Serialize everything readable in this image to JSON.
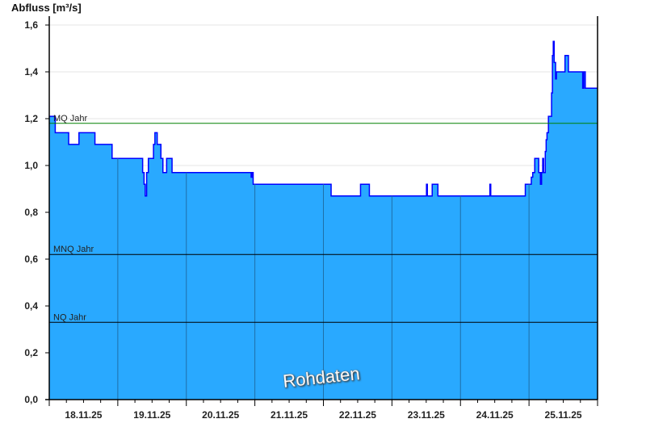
{
  "chart_data": {
    "type": "area",
    "title": "",
    "ylabel": "Abfluss [m³/s]",
    "xlabel": "",
    "ylim": [
      0,
      1.6
    ],
    "yticks": [
      "0,0",
      "0,2",
      "0,4",
      "0,6",
      "0,8",
      "1,0",
      "1,2",
      "1,4",
      "1,6"
    ],
    "xlim": [
      "18.11.25 00:00",
      "26.11.25 00:00"
    ],
    "xticks": [
      "18.11.25",
      "19.11.25",
      "20.11.25",
      "21.11.25",
      "22.11.25",
      "23.11.25",
      "24.11.25",
      "25.11.25"
    ],
    "grid": true,
    "step": true,
    "watermark": "Rohdaten",
    "colors": {
      "fill": "#29a9ff",
      "line": "#0000ff",
      "mq": "#008000",
      "ref": "#000000",
      "dayline": "#1f6fa8"
    },
    "reference_lines": [
      {
        "label": "MQ Jahr",
        "value": 1.18
      },
      {
        "label": "MNQ Jahr",
        "value": 0.62
      },
      {
        "label": "NQ Jahr",
        "value": 0.33
      }
    ],
    "points": [
      [
        "18.11.25 00:00",
        1.21
      ],
      [
        "18.11.25 02:06",
        1.14
      ],
      [
        "18.11.25 06:48",
        1.09
      ],
      [
        "18.11.25 10:24",
        1.14
      ],
      [
        "18.11.25 16:00",
        1.09
      ],
      [
        "18.11.25 22:00",
        1.03
      ],
      [
        "19.11.25 08:42",
        0.97
      ],
      [
        "19.11.25 09:12",
        0.92
      ],
      [
        "19.11.25 09:36",
        0.87
      ],
      [
        "19.11.25 10:06",
        0.97
      ],
      [
        "19.11.25 10:42",
        1.03
      ],
      [
        "19.11.25 12:30",
        1.09
      ],
      [
        "19.11.25 13:00",
        1.14
      ],
      [
        "19.11.25 13:48",
        1.09
      ],
      [
        "19.11.25 15:06",
        1.03
      ],
      [
        "19.11.25 15:48",
        0.97
      ],
      [
        "19.11.25 17:06",
        1.03
      ],
      [
        "19.11.25 19:00",
        0.97
      ],
      [
        "20.11.25 22:42",
        0.95
      ],
      [
        "20.11.25 23:00",
        0.97
      ],
      [
        "20.11.25 23:24",
        0.92
      ],
      [
        "22.11.25 02:42",
        0.87
      ],
      [
        "22.11.25 13:00",
        0.92
      ],
      [
        "22.11.25 16:06",
        0.87
      ],
      [
        "23.11.25 12:06",
        0.92
      ],
      [
        "23.11.25 12:24",
        0.87
      ],
      [
        "23.11.25 14:06",
        0.92
      ],
      [
        "23.11.25 16:06",
        0.87
      ],
      [
        "24.11.25 10:18",
        0.92
      ],
      [
        "24.11.25 10:36",
        0.87
      ],
      [
        "24.11.25 22:42",
        0.92
      ],
      [
        "25.11.25 00:48",
        0.95
      ],
      [
        "25.11.25 01:18",
        0.97
      ],
      [
        "25.11.25 02:00",
        1.03
      ],
      [
        "25.11.25 03:24",
        0.97
      ],
      [
        "25.11.25 04:00",
        0.92
      ],
      [
        "25.11.25 04:24",
        0.97
      ],
      [
        "25.11.25 04:48",
        1.03
      ],
      [
        "25.11.25 05:06",
        0.97
      ],
      [
        "25.11.25 05:42",
        1.06
      ],
      [
        "25.11.25 06:00",
        1.11
      ],
      [
        "25.11.25 06:18",
        1.14
      ],
      [
        "25.11.25 06:48",
        1.21
      ],
      [
        "25.11.25 07:54",
        1.31
      ],
      [
        "25.11.25 08:12",
        1.47
      ],
      [
        "25.11.25 08:30",
        1.53
      ],
      [
        "25.11.25 08:48",
        1.44
      ],
      [
        "25.11.25 09:18",
        1.37
      ],
      [
        "25.11.25 09:36",
        1.4
      ],
      [
        "25.11.25 12:36",
        1.47
      ],
      [
        "25.11.25 13:48",
        1.4
      ],
      [
        "25.11.25 18:48",
        1.33
      ],
      [
        "25.11.25 19:12",
        1.4
      ],
      [
        "25.11.25 19:42",
        1.33
      ],
      [
        "26.11.25 00:00",
        1.33
      ]
    ]
  }
}
